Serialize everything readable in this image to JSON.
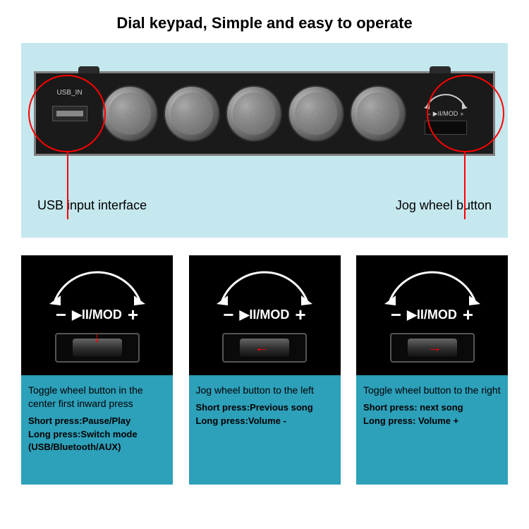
{
  "title": "Dial keypad, Simple and easy to operate",
  "device": {
    "usb_label": "USB_IN",
    "dial_count": 5,
    "jog_minus": "−",
    "jog_plus": "+",
    "jog_mod": "▶II/MOD"
  },
  "callouts": {
    "usb": "USB input interface",
    "jog": "Jog wheel button"
  },
  "mod_label": "▶II/MOD",
  "cards": [
    {
      "arrow_dir": "down",
      "desc": "Toggle wheel button in the center first inward press",
      "actions": "Short press:Pause/Play\nLong press:Switch mode\n(USB/Bluetooth/AUX)"
    },
    {
      "arrow_dir": "left",
      "desc": "Jog wheel button to the left",
      "actions": "Short press:Previous song\nLong press:Volume -"
    },
    {
      "arrow_dir": "right",
      "desc": "Toggle wheel button to the right",
      "actions": "Short press: next song\nLong press: Volume +"
    }
  ],
  "colors": {
    "top_bg": "#c5e8ef",
    "card_bottom_bg": "#2da0ba",
    "highlight": "#ff0000",
    "device_bg": "#1a1a1a"
  }
}
